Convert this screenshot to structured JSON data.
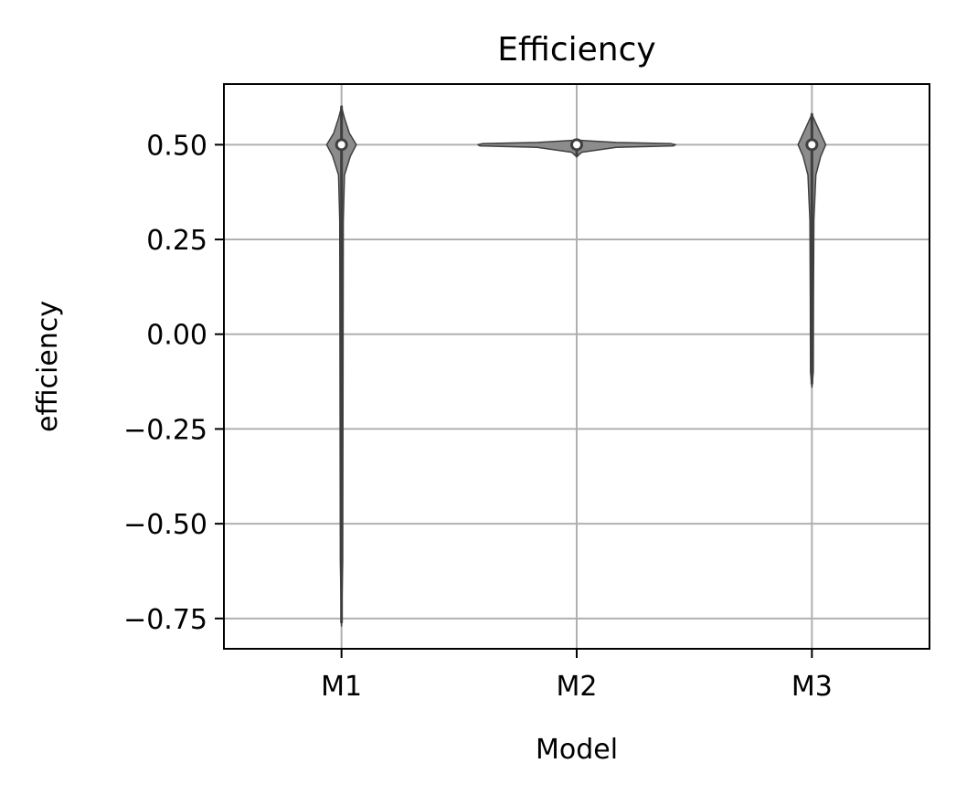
{
  "chart_data": {
    "type": "violin",
    "title": "Efficiency",
    "xlabel": "Model",
    "ylabel": "efficiency",
    "categories": [
      "M1",
      "M2",
      "M3"
    ],
    "yticks": [
      0.5,
      0.25,
      0.0,
      -0.25,
      -0.5,
      -0.75
    ],
    "ytick_labels": [
      "0.50",
      "0.25",
      "0.00",
      "−0.25",
      "−0.50",
      "−0.75"
    ],
    "ylim": [
      -0.83,
      0.66
    ],
    "grid": true,
    "colors": {
      "violin_fill": "#8c8c8c",
      "violin_edge": "#3f3f3f",
      "grid": "#b0b0b0",
      "median_fill": "#ffffff"
    },
    "violins": [
      {
        "category": "M1",
        "median": 0.5,
        "q1": 0.49,
        "q3": 0.51,
        "whisker_low": -0.76,
        "whisker_high": 0.6,
        "density": [
          [
            -0.77,
            0.0
          ],
          [
            -0.6,
            0.012
          ],
          [
            -0.3,
            0.014
          ],
          [
            0.0,
            0.016
          ],
          [
            0.3,
            0.018
          ],
          [
            0.42,
            0.03
          ],
          [
            0.47,
            0.09
          ],
          [
            0.5,
            0.15
          ],
          [
            0.53,
            0.08
          ],
          [
            0.57,
            0.03
          ],
          [
            0.6,
            0.0
          ]
        ]
      },
      {
        "category": "M2",
        "median": 0.5,
        "q1": 0.498,
        "q3": 0.502,
        "whisker_low": 0.47,
        "whisker_high": 0.51,
        "density": [
          [
            0.468,
            0.0
          ],
          [
            0.48,
            0.05
          ],
          [
            0.493,
            0.4
          ],
          [
            0.497,
            0.98
          ],
          [
            0.5,
            1.0
          ],
          [
            0.503,
            0.95
          ],
          [
            0.506,
            0.4
          ],
          [
            0.512,
            0.0
          ]
        ]
      },
      {
        "category": "M3",
        "median": 0.5,
        "q1": 0.49,
        "q3": 0.51,
        "whisker_low": -0.13,
        "whisker_high": 0.58,
        "density": [
          [
            -0.14,
            0.0
          ],
          [
            -0.1,
            0.014
          ],
          [
            0.1,
            0.016
          ],
          [
            0.3,
            0.02
          ],
          [
            0.42,
            0.04
          ],
          [
            0.47,
            0.09
          ],
          [
            0.5,
            0.14
          ],
          [
            0.54,
            0.07
          ],
          [
            0.58,
            0.0
          ]
        ]
      }
    ]
  }
}
